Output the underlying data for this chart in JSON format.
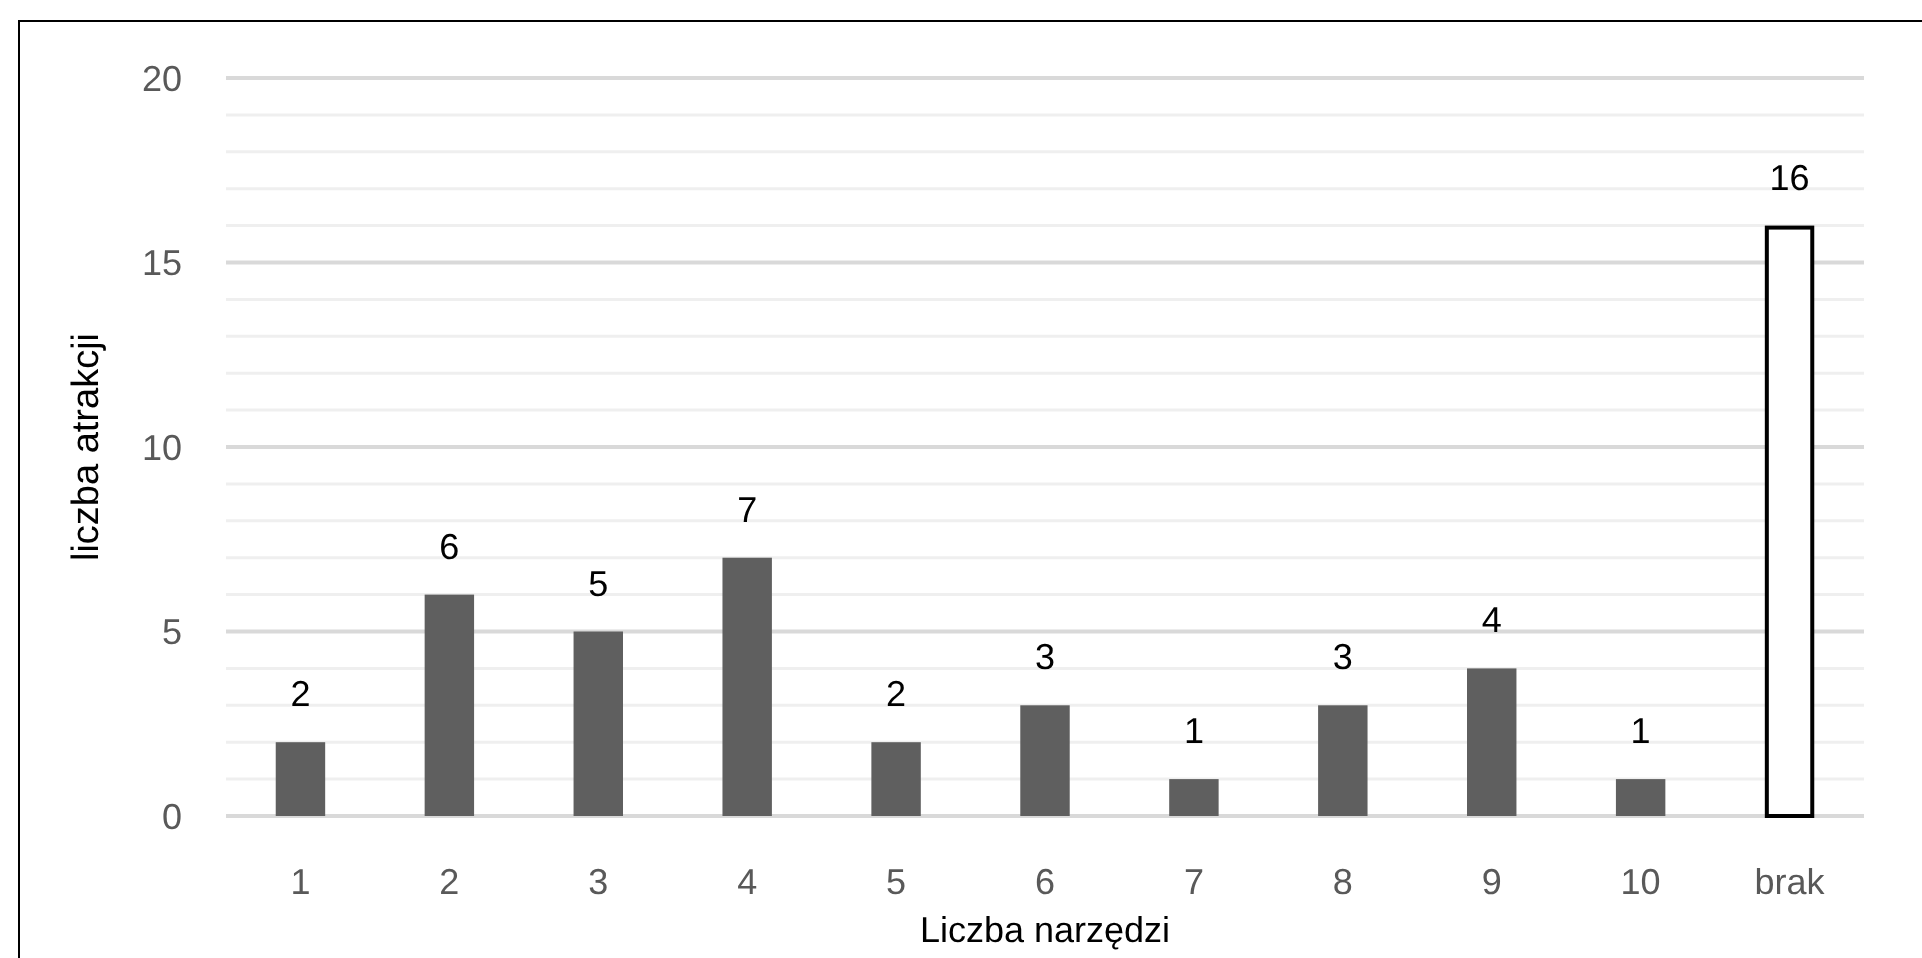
{
  "chart_data": {
    "type": "bar",
    "xlabel": "Liczba narzędzi",
    "ylabel": "liczba atrakcji",
    "categories": [
      "1",
      "2",
      "3",
      "4",
      "5",
      "6",
      "7",
      "8",
      "9",
      "10",
      "brak"
    ],
    "values": [
      2,
      6,
      5,
      7,
      2,
      3,
      1,
      3,
      4,
      1,
      16
    ],
    "colors": [
      "#5f5f5f",
      "#5f5f5f",
      "#5f5f5f",
      "#5f5f5f",
      "#5f5f5f",
      "#5f5f5f",
      "#5f5f5f",
      "#5f5f5f",
      "#5f5f5f",
      "#5f5f5f",
      "#ffffff"
    ],
    "ylim": [
      0,
      20
    ],
    "yticks": [
      0,
      {
        "value": 1,
        "label": null
      },
      {
        "value": 2,
        "label": null
      },
      {
        "value": 3,
        "label": null
      },
      {
        "value": 4,
        "label": null
      },
      5,
      {
        "value": 6,
        "label": null
      },
      {
        "value": 7,
        "label": null
      },
      {
        "value": 8,
        "label": null
      },
      {
        "value": 9,
        "label": null
      },
      10,
      {
        "value": 11,
        "label": null
      },
      {
        "value": 12,
        "label": null
      },
      {
        "value": 13,
        "label": null
      },
      {
        "value": 14,
        "label": null
      },
      15,
      {
        "value": 16,
        "label": null
      },
      {
        "value": 17,
        "label": null
      },
      {
        "value": 18,
        "label": null
      },
      {
        "value": 19,
        "label": null
      },
      20
    ],
    "grid": "y",
    "data_labels": true
  }
}
